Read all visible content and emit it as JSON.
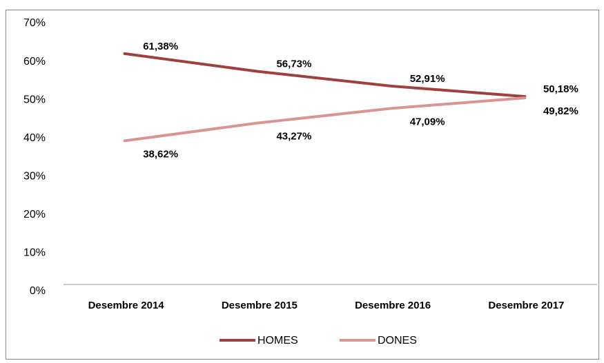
{
  "chart_data": {
    "type": "line",
    "categories": [
      "Desembre 2014",
      "Desembre 2015",
      "Desembre 2016",
      "Desembre 2017"
    ],
    "series": [
      {
        "name": "HOMES",
        "color": "#a0403e",
        "values": [
          61.38,
          56.73,
          52.91,
          50.18
        ],
        "value_labels": [
          "61,38%",
          "56,73%",
          "52,91%",
          "50,18%"
        ]
      },
      {
        "name": "DONES",
        "color": "#d99594",
        "values": [
          38.62,
          43.27,
          47.09,
          49.82
        ],
        "value_labels": [
          "38,62%",
          "43,27%",
          "47,09%",
          "49,82%"
        ]
      }
    ],
    "ylim": [
      0,
      70
    ],
    "yticks": [
      {
        "value": 0,
        "label": "0%"
      },
      {
        "value": 10,
        "label": "10%"
      },
      {
        "value": 20,
        "label": "20%"
      },
      {
        "value": 30,
        "label": "30%"
      },
      {
        "value": 40,
        "label": "40%"
      },
      {
        "value": 50,
        "label": "50%"
      },
      {
        "value": 60,
        "label": "60%"
      },
      {
        "value": 70,
        "label": "70%"
      }
    ],
    "grid": false,
    "legend": "bottom"
  }
}
